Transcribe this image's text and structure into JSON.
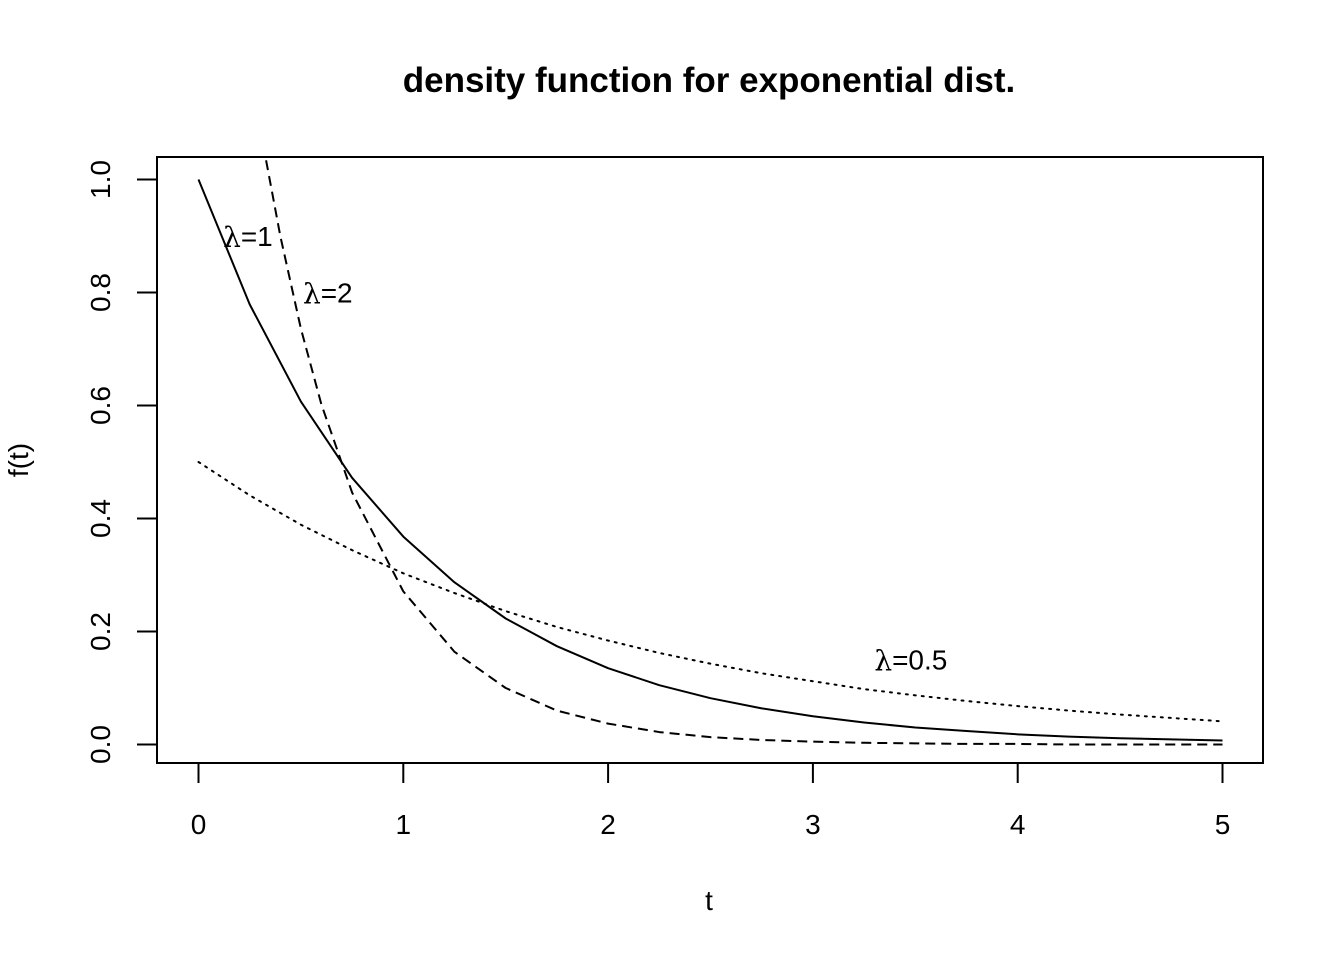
{
  "chart_data": {
    "type": "line",
    "title": "density function for exponential dist.",
    "xlabel": "t",
    "ylabel": "f(t)",
    "xlim": [
      0,
      5
    ],
    "ylim": [
      0,
      1
    ],
    "x_ticks": [
      "0",
      "1",
      "2",
      "3",
      "4",
      "5"
    ],
    "y_ticks": [
      "0.0",
      "0.2",
      "0.4",
      "0.6",
      "0.8",
      "1.0"
    ],
    "grid": false,
    "legend": "none",
    "series": [
      {
        "line_style": "solid",
        "color": "#000000",
        "x": [
          0,
          0.25,
          0.5,
          0.75,
          1,
          1.25,
          1.5,
          1.75,
          2,
          2.25,
          2.5,
          2.75,
          3,
          3.25,
          3.5,
          3.75,
          4,
          4.25,
          4.5,
          4.75,
          5
        ],
        "y": [
          1.0,
          0.779,
          0.607,
          0.472,
          0.368,
          0.287,
          0.223,
          0.174,
          0.135,
          0.105,
          0.082,
          0.064,
          0.05,
          0.039,
          0.03,
          0.024,
          0.018,
          0.014,
          0.011,
          0.009,
          0.007
        ]
      },
      {
        "line_style": "dashed",
        "color": "#000000",
        "x": [
          0.33,
          0.4,
          0.5,
          0.6,
          0.75,
          1,
          1.25,
          1.5,
          1.75,
          2,
          2.25,
          2.5,
          2.75,
          3,
          3.25,
          3.5,
          3.75,
          4,
          4.25,
          4.5,
          4.75,
          5
        ],
        "y": [
          1.034,
          0.899,
          0.736,
          0.602,
          0.446,
          0.271,
          0.164,
          0.1,
          0.06,
          0.037,
          0.022,
          0.013,
          0.008,
          0.005,
          0.003,
          0.002,
          0.001,
          0.001,
          0.0,
          0.0,
          0.0,
          0.0
        ]
      },
      {
        "line_style": "dotted",
        "color": "#000000",
        "x": [
          0,
          0.25,
          0.5,
          0.75,
          1,
          1.25,
          1.5,
          1.75,
          2,
          2.25,
          2.5,
          2.75,
          3,
          3.25,
          3.5,
          3.75,
          4,
          4.25,
          4.5,
          4.75,
          5
        ],
        "y": [
          0.5,
          0.441,
          0.389,
          0.344,
          0.303,
          0.268,
          0.236,
          0.208,
          0.184,
          0.162,
          0.143,
          0.126,
          0.112,
          0.098,
          0.087,
          0.077,
          0.068,
          0.06,
          0.053,
          0.047,
          0.041
        ]
      }
    ],
    "annotations": [
      {
        "symbol": "λ",
        "text": "=1",
        "x": 0.12,
        "y": 0.895
      },
      {
        "symbol": "λ",
        "text": "=2",
        "x": 0.51,
        "y": 0.795
      },
      {
        "symbol": "λ",
        "text": "=0.5",
        "x": 3.3,
        "y": 0.145
      }
    ]
  }
}
